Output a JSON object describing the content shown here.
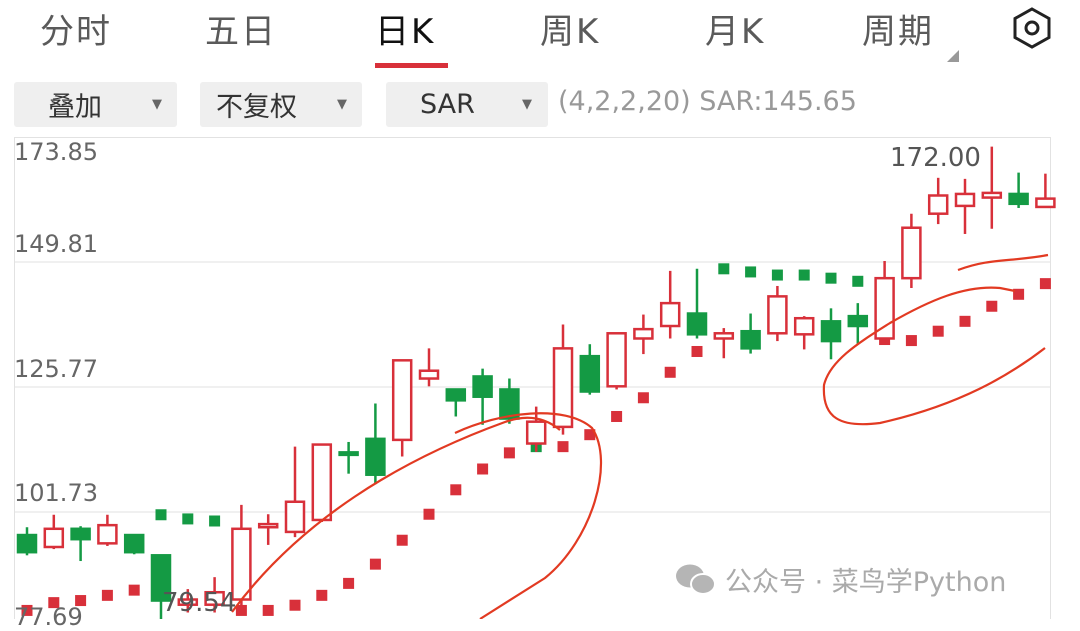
{
  "tabs": [
    {
      "label": "分时"
    },
    {
      "label": "五日"
    },
    {
      "label": "日K",
      "active": true
    },
    {
      "label": "周K"
    },
    {
      "label": "月K"
    },
    {
      "label": "周期"
    }
  ],
  "settings_icon": "hexagon-gear-icon",
  "toolbar": {
    "overlay": "叠加",
    "adjust": "不复权",
    "indicator": "SAR",
    "params": "(4,2,2,20) SAR:145.65"
  },
  "watermark": "公众号 · 菜鸟学Python",
  "colors": {
    "up": "#d8303a",
    "down": "#149a44",
    "accent": "#d8303a"
  },
  "chart_data": {
    "type": "candlestick",
    "ylim": [
      77.69,
      173.85
    ],
    "y_ticks": [
      "173.85",
      "149.81",
      "125.77",
      "101.73",
      "77.69"
    ],
    "grid": true,
    "high_label": "172.00",
    "low_label": "79.54",
    "candles": [
      {
        "o": 97.3,
        "h": 98.8,
        "l": 93.4,
        "c": 94.0
      },
      {
        "o": 95.0,
        "h": 101.2,
        "l": 94.6,
        "c": 98.5
      },
      {
        "o": 98.5,
        "h": 99.0,
        "l": 92.3,
        "c": 96.5
      },
      {
        "o": 95.7,
        "h": 101.2,
        "l": 95.2,
        "c": 99.2
      },
      {
        "o": 97.3,
        "h": 97.3,
        "l": 93.6,
        "c": 94.0
      },
      {
        "o": 93.4,
        "h": 93.4,
        "l": 79.54,
        "c": 84.7
      },
      {
        "o": 83.9,
        "h": 86.9,
        "l": 82.4,
        "c": 84.9
      },
      {
        "o": 83.9,
        "h": 89.2,
        "l": 82.4,
        "c": 86.3
      },
      {
        "o": 84.9,
        "h": 103.1,
        "l": 83.0,
        "c": 98.5
      },
      {
        "o": 98.8,
        "h": 101.3,
        "l": 95.4,
        "c": 99.4
      },
      {
        "o": 97.9,
        "h": 114.3,
        "l": 96.9,
        "c": 103.7
      },
      {
        "o": 100.2,
        "h": 114.7,
        "l": 99.8,
        "c": 114.7
      },
      {
        "o": 113.2,
        "h": 115.2,
        "l": 109.1,
        "c": 112.9
      },
      {
        "o": 115.8,
        "h": 122.6,
        "l": 107.1,
        "c": 108.9
      },
      {
        "o": 115.6,
        "h": 130.9,
        "l": 112.4,
        "c": 130.9
      },
      {
        "o": 127.4,
        "h": 133.2,
        "l": 125.9,
        "c": 128.9
      },
      {
        "o": 125.3,
        "h": 125.3,
        "l": 120.1,
        "c": 123.2
      },
      {
        "o": 127.8,
        "h": 129.3,
        "l": 118.5,
        "c": 123.9
      },
      {
        "o": 125.3,
        "h": 127.4,
        "l": 118.7,
        "c": 119.7
      },
      {
        "o": 114.9,
        "h": 122.0,
        "l": 113.3,
        "c": 119.1
      },
      {
        "o": 118.1,
        "h": 137.8,
        "l": 116.6,
        "c": 133.2
      },
      {
        "o": 131.7,
        "h": 134.0,
        "l": 124.3,
        "c": 124.9
      },
      {
        "o": 125.9,
        "h": 136.1,
        "l": 125.3,
        "c": 136.1
      },
      {
        "o": 135.1,
        "h": 139.7,
        "l": 132.1,
        "c": 136.9
      },
      {
        "o": 137.5,
        "h": 148.1,
        "l": 135.1,
        "c": 141.9
      },
      {
        "o": 139.9,
        "h": 148.5,
        "l": 135.1,
        "c": 135.9
      },
      {
        "o": 135.1,
        "h": 137.1,
        "l": 131.3,
        "c": 136.1
      },
      {
        "o": 136.5,
        "h": 139.9,
        "l": 132.2,
        "c": 133.2
      },
      {
        "o": 136.1,
        "h": 145.2,
        "l": 134.6,
        "c": 143.2
      },
      {
        "o": 135.9,
        "h": 139.4,
        "l": 133.0,
        "c": 139.0
      },
      {
        "o": 138.4,
        "h": 140.9,
        "l": 131.1,
        "c": 134.6
      },
      {
        "o": 139.4,
        "h": 141.9,
        "l": 134.1,
        "c": 137.5
      },
      {
        "o": 135.1,
        "h": 150.0,
        "l": 135.1,
        "c": 146.7
      },
      {
        "o": 146.7,
        "h": 159.1,
        "l": 144.8,
        "c": 156.4
      },
      {
        "o": 159.1,
        "h": 166.0,
        "l": 157.1,
        "c": 162.6
      },
      {
        "o": 160.6,
        "h": 165.8,
        "l": 155.2,
        "c": 162.9
      },
      {
        "o": 162.2,
        "h": 172.0,
        "l": 156.2,
        "c": 163.1
      },
      {
        "o": 162.9,
        "h": 167.0,
        "l": 160.2,
        "c": 161.0
      },
      {
        "o": 160.4,
        "h": 166.8,
        "l": 160.4,
        "c": 162.0
      }
    ],
    "sar": [
      82.8,
      84.3,
      84.7,
      85.7,
      86.7,
      101.2,
      100.4,
      100.0,
      82.8,
      82.8,
      83.8,
      85.7,
      88.0,
      91.7,
      96.3,
      101.3,
      106.0,
      110.0,
      113.1,
      114.3,
      114.3,
      116.6,
      120.1,
      123.7,
      128.6,
      132.6,
      148.5,
      147.9,
      147.3,
      147.3,
      146.7,
      146.1,
      134.9,
      134.7,
      136.5,
      138.4,
      141.3,
      143.6,
      145.65
    ]
  }
}
